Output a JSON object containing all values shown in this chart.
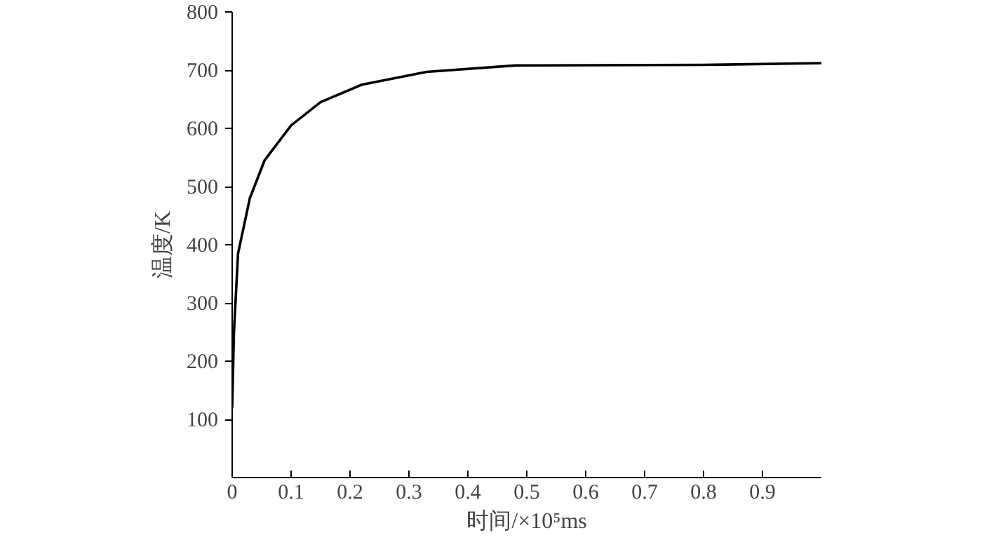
{
  "chart_data": {
    "type": "line",
    "xlabel": "时间/×10⁵ms",
    "ylabel": "温度/K",
    "x": [
      0,
      0.003,
      0.01,
      0.03,
      0.055,
      0.1,
      0.15,
      0.22,
      0.33,
      0.48,
      0.8,
      1.0
    ],
    "series": [
      {
        "color": "#000000",
        "values": [
          120,
          250,
          385,
          480,
          545,
          605,
          645,
          675,
          697,
          708,
          709,
          712
        ]
      }
    ],
    "xlim": [
      0,
      1.0
    ],
    "ylim": [
      0,
      800
    ],
    "xticks": [
      0,
      0.1,
      0.2,
      0.3,
      0.4,
      0.5,
      0.6,
      0.7,
      0.8,
      0.9
    ],
    "yticks": [
      100,
      200,
      300,
      400,
      500,
      600,
      700,
      800
    ],
    "grid": false,
    "marker": "none",
    "line_style": "solid"
  }
}
